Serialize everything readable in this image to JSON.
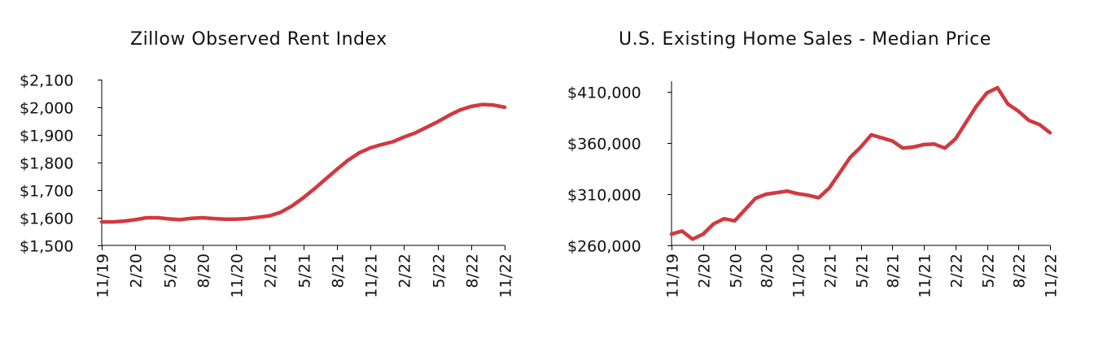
{
  "colors": {
    "line": "#d2393f",
    "axis": "#000000",
    "text": "#111111"
  },
  "chart_data": [
    {
      "type": "line",
      "title": "Zillow Observed Rent Index",
      "xlabel": "",
      "ylabel": "",
      "x_tick_labels": [
        "11/19",
        "2/20",
        "5/20",
        "8/20",
        "11/20",
        "2/21",
        "5/21",
        "8/21",
        "11/21",
        "2/22",
        "5/22",
        "8/22",
        "11/22"
      ],
      "y_tick_labels": [
        "$2,100",
        "$2,000",
        "$1,900",
        "$1,800",
        "$1,700",
        "$1,600",
        "$1,500"
      ],
      "ylim": [
        1500,
        2100
      ],
      "y_ticks": [
        1500,
        1600,
        1700,
        1800,
        1900,
        2000,
        2100
      ],
      "grid": false,
      "series": [
        {
          "x": [
            "11/19",
            "12/19",
            "1/20",
            "2/20",
            "3/20",
            "4/20",
            "5/20",
            "6/20",
            "7/20",
            "8/20",
            "9/20",
            "10/20",
            "11/20",
            "12/20",
            "1/21",
            "2/21",
            "3/21",
            "4/21",
            "5/21",
            "6/21",
            "7/21",
            "8/21",
            "9/21",
            "10/21",
            "11/21",
            "12/21",
            "1/22",
            "2/22",
            "3/22",
            "4/22",
            "5/22",
            "6/22",
            "7/22",
            "8/22",
            "9/22",
            "10/22",
            "11/22"
          ],
          "values": [
            1585,
            1585,
            1588,
            1593,
            1600,
            1600,
            1596,
            1593,
            1598,
            1600,
            1597,
            1595,
            1595,
            1597,
            1602,
            1607,
            1620,
            1643,
            1672,
            1705,
            1740,
            1775,
            1808,
            1835,
            1853,
            1865,
            1875,
            1892,
            1907,
            1927,
            1947,
            1970,
            1990,
            2003,
            2010,
            2008,
            2000
          ]
        }
      ]
    },
    {
      "type": "line",
      "title": "U.S. Existing Home Sales - Median Price",
      "xlabel": "",
      "ylabel": "",
      "x_tick_labels": [
        "11/19",
        "2/20",
        "5/20",
        "8/20",
        "11/20",
        "2/21",
        "5/21",
        "8/21",
        "11/21",
        "2/22",
        "5/22",
        "8/22",
        "11/22"
      ],
      "y_tick_labels": [
        "$410,000",
        "$360,000",
        "$310,000",
        "$260,000"
      ],
      "ylim": [
        260000,
        420000
      ],
      "y_ticks": [
        260000,
        310000,
        360000,
        410000
      ],
      "grid": false,
      "series": [
        {
          "x": [
            "11/19",
            "12/19",
            "1/20",
            "2/20",
            "3/20",
            "4/20",
            "5/20",
            "6/20",
            "7/20",
            "8/20",
            "9/20",
            "10/20",
            "11/20",
            "12/20",
            "1/21",
            "2/21",
            "3/21",
            "4/21",
            "5/21",
            "6/21",
            "7/21",
            "8/21",
            "9/21",
            "10/21",
            "11/21",
            "12/21",
            "1/22",
            "2/22",
            "3/22",
            "4/22",
            "5/22",
            "6/22",
            "7/22",
            "8/22",
            "9/22",
            "10/22",
            "11/22"
          ],
          "values": [
            271000,
            274000,
            266000,
            271000,
            281000,
            286000,
            284000,
            295000,
            306000,
            310000,
            311500,
            313000,
            310500,
            309000,
            306500,
            316000,
            331000,
            346000,
            356000,
            368000,
            365000,
            362000,
            355000,
            356000,
            358500,
            359000,
            355000,
            364000,
            380000,
            396000,
            409000,
            414000,
            398000,
            391000,
            382000,
            378000,
            370000
          ]
        }
      ]
    }
  ]
}
